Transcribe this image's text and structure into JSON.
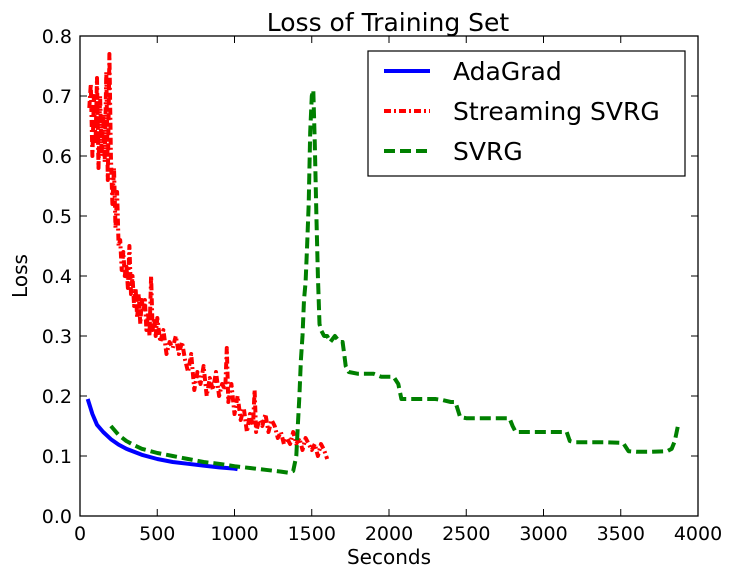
{
  "chart_data": {
    "type": "line",
    "title": "Loss of Training Set",
    "xlabel": "Seconds",
    "ylabel": "Loss",
    "xlim": [
      0,
      4000
    ],
    "ylim": [
      0,
      0.8
    ],
    "x_ticks": [
      0,
      500,
      1000,
      1500,
      2000,
      2500,
      3000,
      3500,
      4000
    ],
    "y_ticks": [
      "0.0",
      "0.1",
      "0.2",
      "0.3",
      "0.4",
      "0.5",
      "0.6",
      "0.7",
      "0.8"
    ],
    "grid": false,
    "legend_position": "top-right",
    "series": [
      {
        "name": "AdaGrad",
        "color": "#0000ff",
        "dash": "solid",
        "points": [
          [
            50,
            0.195
          ],
          [
            80,
            0.17
          ],
          [
            110,
            0.152
          ],
          [
            150,
            0.14
          ],
          [
            200,
            0.128
          ],
          [
            250,
            0.119
          ],
          [
            300,
            0.112
          ],
          [
            400,
            0.102
          ],
          [
            500,
            0.095
          ],
          [
            600,
            0.09
          ],
          [
            700,
            0.087
          ],
          [
            800,
            0.084
          ],
          [
            900,
            0.081
          ],
          [
            1000,
            0.079
          ],
          [
            1020,
            0.078
          ]
        ]
      },
      {
        "name": "Streaming SVRG",
        "color": "#ff0000",
        "dash": "dashdot",
        "points": [
          [
            60,
            0.68
          ],
          [
            70,
            0.72
          ],
          [
            80,
            0.6
          ],
          [
            90,
            0.7
          ],
          [
            100,
            0.62
          ],
          [
            110,
            0.73
          ],
          [
            120,
            0.58
          ],
          [
            130,
            0.7
          ],
          [
            140,
            0.6
          ],
          [
            150,
            0.67
          ],
          [
            160,
            0.59
          ],
          [
            170,
            0.74
          ],
          [
            180,
            0.56
          ],
          [
            190,
            0.77
          ],
          [
            200,
            0.6
          ],
          [
            210,
            0.52
          ],
          [
            220,
            0.58
          ],
          [
            230,
            0.48
          ],
          [
            240,
            0.54
          ],
          [
            250,
            0.45
          ],
          [
            260,
            0.46
          ],
          [
            270,
            0.41
          ],
          [
            280,
            0.44
          ],
          [
            290,
            0.4
          ],
          [
            300,
            0.42
          ],
          [
            310,
            0.38
          ],
          [
            320,
            0.45
          ],
          [
            330,
            0.37
          ],
          [
            340,
            0.4
          ],
          [
            350,
            0.35
          ],
          [
            360,
            0.38
          ],
          [
            370,
            0.33
          ],
          [
            380,
            0.37
          ],
          [
            390,
            0.32
          ],
          [
            400,
            0.36
          ],
          [
            410,
            0.34
          ],
          [
            420,
            0.36
          ],
          [
            430,
            0.31
          ],
          [
            440,
            0.34
          ],
          [
            450,
            0.3
          ],
          [
            460,
            0.4
          ],
          [
            470,
            0.31
          ],
          [
            480,
            0.33
          ],
          [
            490,
            0.3
          ],
          [
            500,
            0.33
          ],
          [
            520,
            0.29
          ],
          [
            540,
            0.31
          ],
          [
            560,
            0.27
          ],
          [
            580,
            0.29
          ],
          [
            600,
            0.28
          ],
          [
            620,
            0.3
          ],
          [
            640,
            0.27
          ],
          [
            660,
            0.29
          ],
          [
            680,
            0.26
          ],
          [
            700,
            0.24
          ],
          [
            720,
            0.27
          ],
          [
            740,
            0.21
          ],
          [
            760,
            0.24
          ],
          [
            780,
            0.22
          ],
          [
            800,
            0.25
          ],
          [
            820,
            0.2
          ],
          [
            840,
            0.23
          ],
          [
            860,
            0.21
          ],
          [
            880,
            0.24
          ],
          [
            900,
            0.2
          ],
          [
            920,
            0.22
          ],
          [
            940,
            0.21
          ],
          [
            950,
            0.28
          ],
          [
            960,
            0.19
          ],
          [
            980,
            0.22
          ],
          [
            1000,
            0.17
          ],
          [
            1020,
            0.2
          ],
          [
            1040,
            0.16
          ],
          [
            1060,
            0.18
          ],
          [
            1080,
            0.14
          ],
          [
            1100,
            0.17
          ],
          [
            1120,
            0.15
          ],
          [
            1130,
            0.21
          ],
          [
            1140,
            0.14
          ],
          [
            1160,
            0.16
          ],
          [
            1180,
            0.15
          ],
          [
            1200,
            0.17
          ],
          [
            1220,
            0.14
          ],
          [
            1240,
            0.16
          ],
          [
            1260,
            0.15
          ],
          [
            1280,
            0.13
          ],
          [
            1300,
            0.14
          ],
          [
            1320,
            0.12
          ],
          [
            1340,
            0.13
          ],
          [
            1360,
            0.12
          ],
          [
            1380,
            0.14
          ],
          [
            1400,
            0.12
          ],
          [
            1420,
            0.13
          ],
          [
            1440,
            0.11
          ],
          [
            1460,
            0.13
          ],
          [
            1480,
            0.12
          ],
          [
            1500,
            0.11
          ],
          [
            1520,
            0.12
          ],
          [
            1540,
            0.1
          ],
          [
            1560,
            0.12
          ],
          [
            1580,
            0.11
          ],
          [
            1600,
            0.095
          ]
        ]
      },
      {
        "name": "SVRG",
        "color": "#008000",
        "dash": "dashed",
        "points": [
          [
            200,
            0.15
          ],
          [
            250,
            0.135
          ],
          [
            300,
            0.125
          ],
          [
            350,
            0.118
          ],
          [
            400,
            0.112
          ],
          [
            500,
            0.105
          ],
          [
            600,
            0.1
          ],
          [
            700,
            0.095
          ],
          [
            800,
            0.09
          ],
          [
            900,
            0.087
          ],
          [
            1000,
            0.083
          ],
          [
            1100,
            0.08
          ],
          [
            1200,
            0.077
          ],
          [
            1300,
            0.074
          ],
          [
            1350,
            0.072
          ],
          [
            1380,
            0.075
          ],
          [
            1400,
            0.1
          ],
          [
            1410,
            0.15
          ],
          [
            1420,
            0.2
          ],
          [
            1430,
            0.26
          ],
          [
            1440,
            0.3
          ],
          [
            1450,
            0.36
          ],
          [
            1460,
            0.39
          ],
          [
            1470,
            0.45
          ],
          [
            1480,
            0.52
          ],
          [
            1490,
            0.64
          ],
          [
            1500,
            0.7
          ],
          [
            1510,
            0.71
          ],
          [
            1520,
            0.62
          ],
          [
            1530,
            0.5
          ],
          [
            1540,
            0.4
          ],
          [
            1550,
            0.32
          ],
          [
            1560,
            0.31
          ],
          [
            1580,
            0.3
          ],
          [
            1600,
            0.3
          ],
          [
            1620,
            0.29
          ],
          [
            1650,
            0.3
          ],
          [
            1680,
            0.29
          ],
          [
            1700,
            0.29
          ],
          [
            1710,
            0.27
          ],
          [
            1720,
            0.25
          ],
          [
            1740,
            0.24
          ],
          [
            1800,
            0.237
          ],
          [
            1900,
            0.237
          ],
          [
            1950,
            0.232
          ],
          [
            2000,
            0.232
          ],
          [
            2030,
            0.232
          ],
          [
            2060,
            0.22
          ],
          [
            2080,
            0.195
          ],
          [
            2100,
            0.195
          ],
          [
            2200,
            0.195
          ],
          [
            2300,
            0.195
          ],
          [
            2350,
            0.193
          ],
          [
            2400,
            0.19
          ],
          [
            2430,
            0.19
          ],
          [
            2460,
            0.165
          ],
          [
            2500,
            0.163
          ],
          [
            2600,
            0.163
          ],
          [
            2700,
            0.163
          ],
          [
            2780,
            0.163
          ],
          [
            2800,
            0.15
          ],
          [
            2820,
            0.14
          ],
          [
            2900,
            0.14
          ],
          [
            3000,
            0.14
          ],
          [
            3100,
            0.14
          ],
          [
            3150,
            0.14
          ],
          [
            3170,
            0.125
          ],
          [
            3200,
            0.123
          ],
          [
            3300,
            0.123
          ],
          [
            3400,
            0.123
          ],
          [
            3500,
            0.122
          ],
          [
            3520,
            0.12
          ],
          [
            3550,
            0.108
          ],
          [
            3600,
            0.107
          ],
          [
            3700,
            0.107
          ],
          [
            3800,
            0.108
          ],
          [
            3830,
            0.112
          ],
          [
            3850,
            0.125
          ],
          [
            3870,
            0.15
          ]
        ]
      }
    ]
  }
}
